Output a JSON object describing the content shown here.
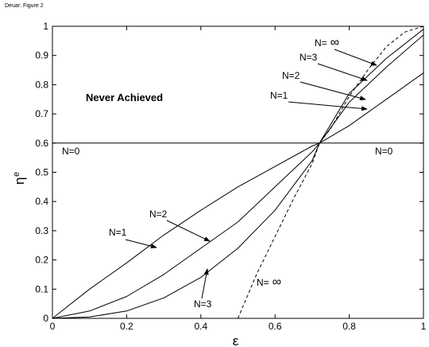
{
  "page_header": "Deuar: Figure 2",
  "chart_data": {
    "type": "line",
    "xlabel": "ε",
    "ylabel": "η",
    "ylabel_superscript": "e",
    "xlim": [
      0,
      1
    ],
    "ylim": [
      0,
      1
    ],
    "x_ticks": [
      0,
      0.2,
      0.4,
      0.6,
      0.8,
      1
    ],
    "x_tick_labels": [
      "0",
      "0.2",
      "0.4",
      "0.6",
      "0.8",
      "1"
    ],
    "y_ticks": [
      0,
      0.1,
      0.2,
      0.3,
      0.4,
      0.5,
      0.6,
      0.7,
      0.8,
      0.9,
      1
    ],
    "y_tick_labels": [
      "0",
      "0.1",
      "0.2",
      "0.3",
      "0.4",
      "0.5",
      "0.6",
      "0.7",
      "0.8",
      "0.9",
      "1"
    ],
    "grid": false,
    "legend": "none",
    "threshold_line": {
      "y": 0.6
    },
    "series": [
      {
        "name": "N=1",
        "style": "solid",
        "x": [
          0,
          0.1,
          0.2,
          0.3,
          0.4,
          0.5,
          0.6,
          0.7,
          0.72,
          0.8,
          0.9,
          1
        ],
        "y": [
          0,
          0.1,
          0.19,
          0.285,
          0.37,
          0.45,
          0.52,
          0.59,
          0.6,
          0.66,
          0.75,
          0.84
        ]
      },
      {
        "name": "N=2",
        "style": "solid",
        "x": [
          0,
          0.1,
          0.2,
          0.3,
          0.4,
          0.5,
          0.6,
          0.7,
          0.72,
          0.8,
          0.9,
          1
        ],
        "y": [
          0,
          0.025,
          0.075,
          0.15,
          0.24,
          0.33,
          0.45,
          0.57,
          0.6,
          0.74,
          0.86,
          0.97
        ]
      },
      {
        "name": "N=3",
        "style": "solid",
        "x": [
          0,
          0.1,
          0.2,
          0.3,
          0.4,
          0.5,
          0.6,
          0.7,
          0.72,
          0.8,
          0.9,
          1
        ],
        "y": [
          0,
          0.005,
          0.025,
          0.07,
          0.14,
          0.24,
          0.37,
          0.54,
          0.6,
          0.77,
          0.89,
          0.99
        ]
      },
      {
        "name": "N=∞",
        "style": "dashed",
        "x": [
          0.5,
          0.55,
          0.6,
          0.65,
          0.7,
          0.72,
          0.75,
          0.8,
          0.85,
          0.9,
          0.95,
          1
        ],
        "y": [
          0,
          0.15,
          0.28,
          0.41,
          0.53,
          0.6,
          0.65,
          0.76,
          0.85,
          0.93,
          0.98,
          1
        ]
      }
    ],
    "annotations": [
      {
        "id": "never",
        "text": "Never Achieved",
        "bold": true
      },
      {
        "id": "n0-left",
        "text": "N=0"
      },
      {
        "id": "n0-right",
        "text": "N=0"
      },
      {
        "id": "inf-top",
        "text": "N=",
        "symbol": "∞"
      },
      {
        "id": "n3-top",
        "text": "N=3"
      },
      {
        "id": "n2-top",
        "text": "N=2"
      },
      {
        "id": "n1-top",
        "text": "N=1"
      },
      {
        "id": "n2-bot",
        "text": "N=2"
      },
      {
        "id": "n1-bot",
        "text": "N=1"
      },
      {
        "id": "n3-bot",
        "text": "N=3"
      },
      {
        "id": "inf-bot",
        "text": "N=",
        "symbol": "∞"
      }
    ]
  }
}
